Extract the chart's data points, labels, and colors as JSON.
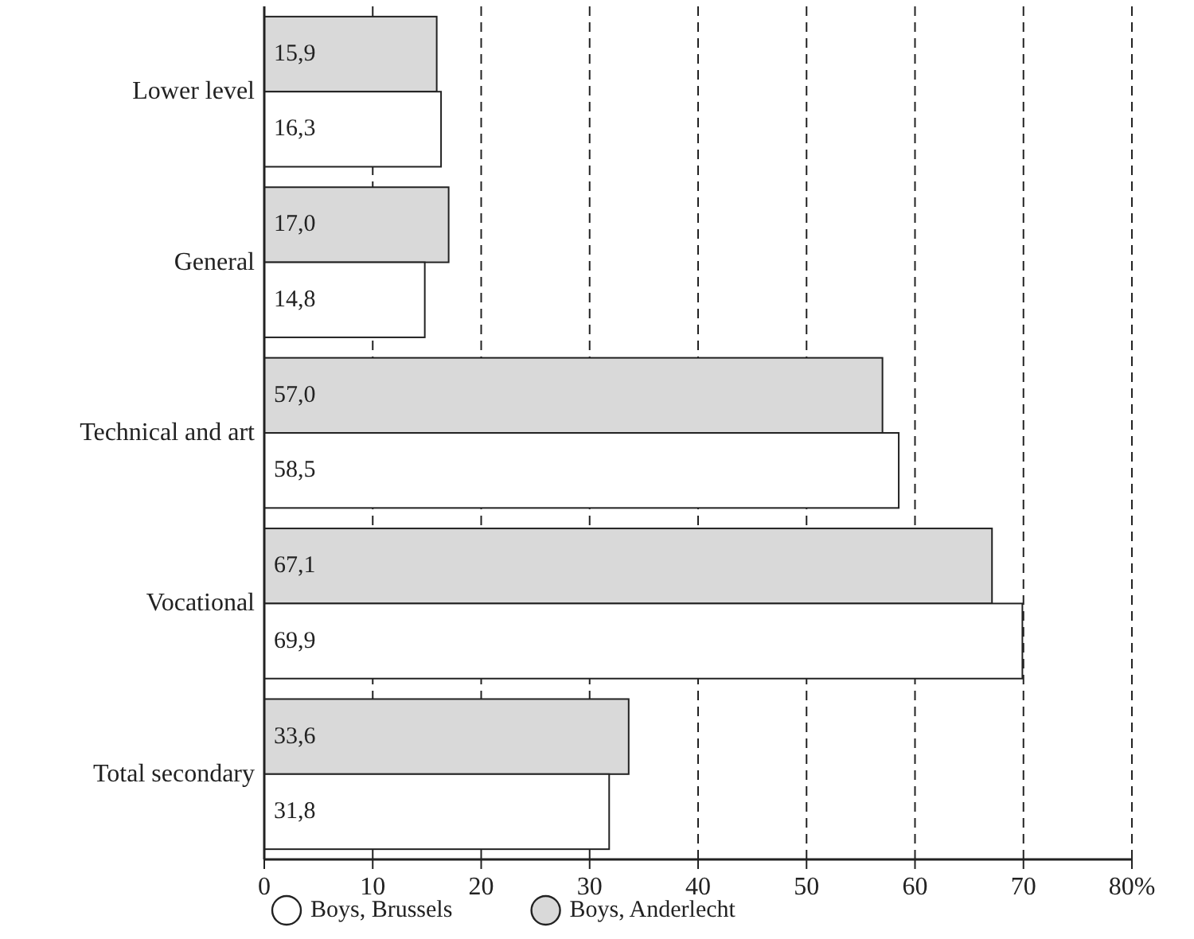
{
  "chart_data": {
    "type": "bar",
    "orientation": "horizontal",
    "categories": [
      "Lower level",
      "General",
      "Technical and art",
      "Vocational",
      "Total secondary"
    ],
    "series": [
      {
        "name": "Boys, Anderlecht",
        "color": "#d9d9d9",
        "values": [
          15.9,
          17.0,
          57.0,
          67.1,
          33.6
        ],
        "value_labels": [
          "15,9",
          "17,0",
          "57,0",
          "67,1",
          "33,6"
        ]
      },
      {
        "name": "Boys, Brussels",
        "color": "#ffffff",
        "values": [
          16.3,
          14.8,
          58.5,
          69.9,
          31.8
        ],
        "value_labels": [
          "16,3",
          "14,8",
          "58,5",
          "69,9",
          "31,8"
        ]
      }
    ],
    "xlim": [
      0,
      80
    ],
    "xticks": [
      0,
      10,
      20,
      30,
      40,
      50,
      60,
      70,
      {
        "value": 80,
        "label": "80%"
      }
    ],
    "grid": "x",
    "legend": "bottom"
  }
}
